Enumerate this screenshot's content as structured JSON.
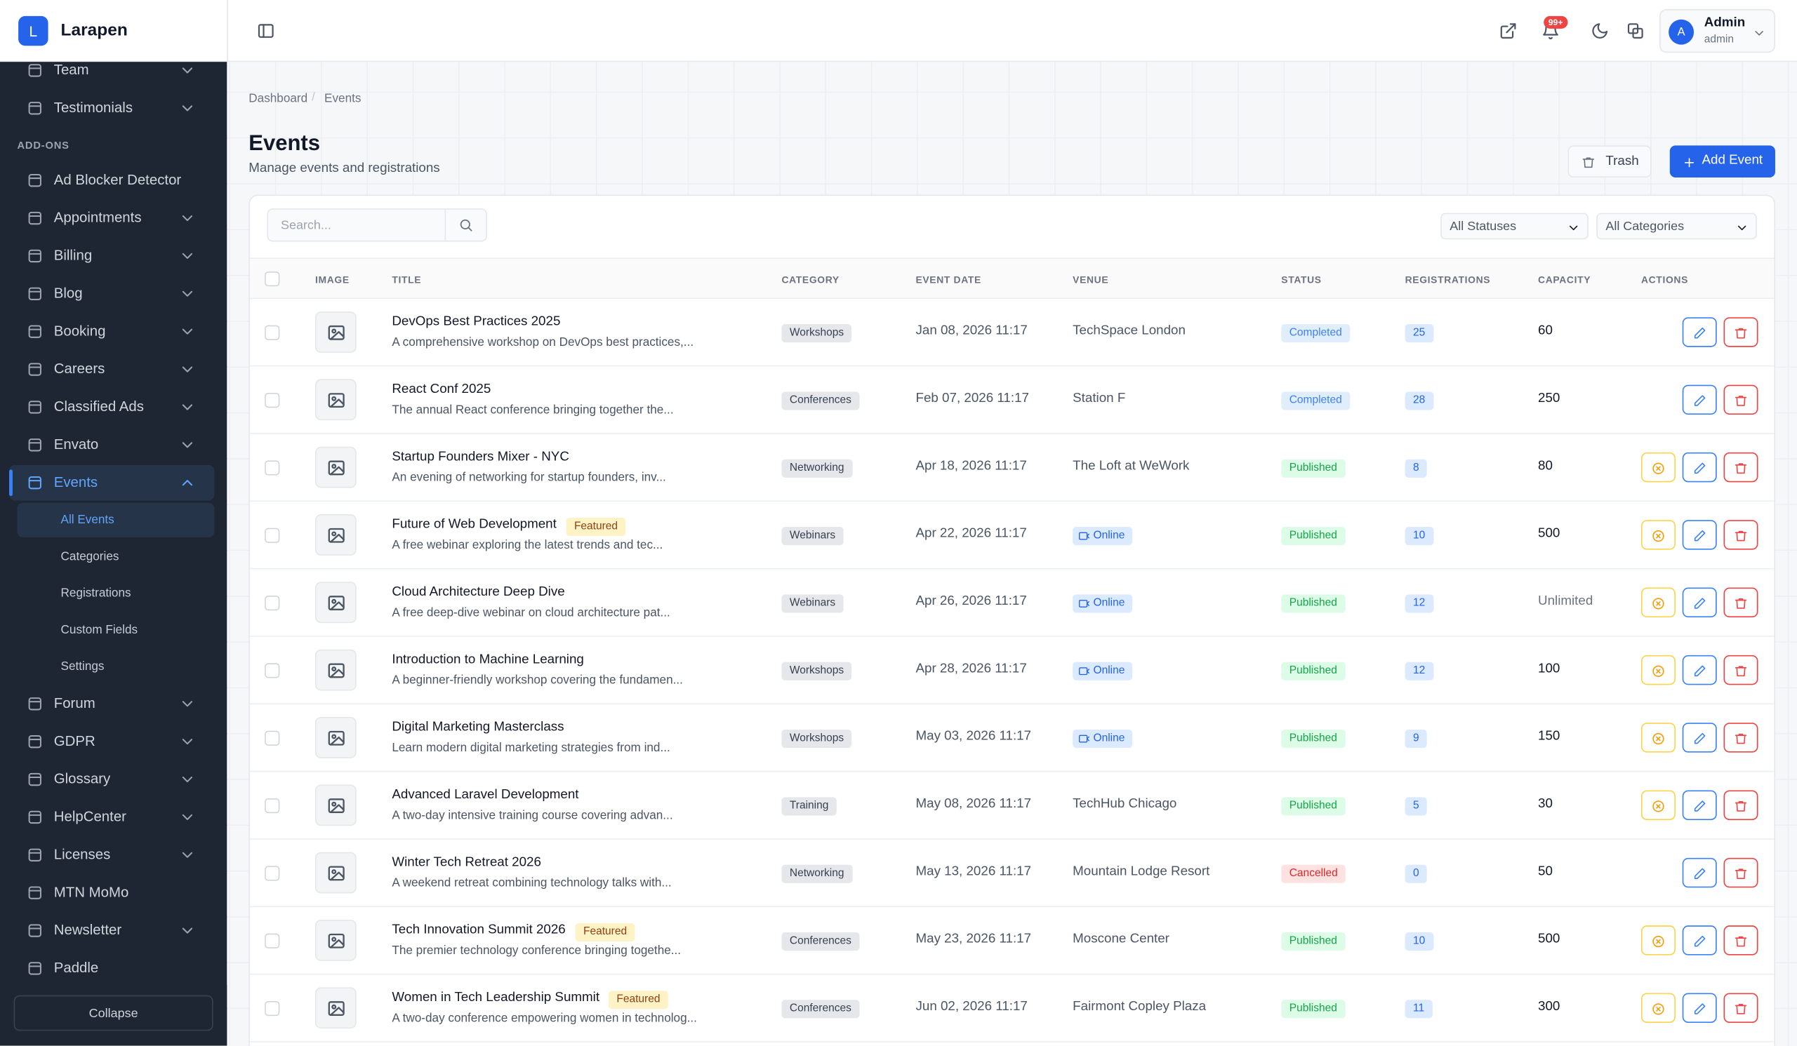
{
  "brand": {
    "initial": "L",
    "name": "Larapen"
  },
  "sidebar": {
    "top_items": [
      {
        "label": "Team",
        "expandable": true
      },
      {
        "label": "Testimonials",
        "expandable": true
      }
    ],
    "section": "ADD-ONS",
    "addons": [
      {
        "label": "Ad Blocker Detector",
        "expandable": false
      },
      {
        "label": "Appointments",
        "expandable": true
      },
      {
        "label": "Billing",
        "expandable": true
      },
      {
        "label": "Blog",
        "expandable": true
      },
      {
        "label": "Booking",
        "expandable": true
      },
      {
        "label": "Careers",
        "expandable": true
      },
      {
        "label": "Classified Ads",
        "expandable": true
      },
      {
        "label": "Envato",
        "expandable": true
      },
      {
        "label": "Events",
        "expandable": true,
        "active": true,
        "children": [
          {
            "label": "All Events",
            "active": true
          },
          {
            "label": "Categories"
          },
          {
            "label": "Registrations"
          },
          {
            "label": "Custom Fields"
          },
          {
            "label": "Settings"
          }
        ]
      },
      {
        "label": "Forum",
        "expandable": true
      },
      {
        "label": "GDPR",
        "expandable": true
      },
      {
        "label": "Glossary",
        "expandable": true
      },
      {
        "label": "HelpCenter",
        "expandable": true
      },
      {
        "label": "Licenses",
        "expandable": true
      },
      {
        "label": "MTN MoMo",
        "expandable": false
      },
      {
        "label": "Newsletter",
        "expandable": true
      },
      {
        "label": "Paddle",
        "expandable": false
      }
    ],
    "collapse": "Collapse"
  },
  "topbar": {
    "notifications": "99+",
    "user": {
      "initial": "A",
      "name": "Admin",
      "role": "admin"
    }
  },
  "breadcrumb": [
    "Dashboard",
    "Events"
  ],
  "page": {
    "title": "Events",
    "subtitle": "Manage events and registrations",
    "trash": "Trash",
    "add": "Add Event"
  },
  "filters": {
    "search": "Search...",
    "status": "All Statuses",
    "category": "All Categories"
  },
  "table": {
    "columns": [
      "IMAGE",
      "TITLE",
      "CATEGORY",
      "EVENT DATE",
      "VENUE",
      "STATUS",
      "REGISTRATIONS",
      "CAPACITY",
      "ACTIONS"
    ],
    "rows": [
      {
        "title": "DevOps Best Practices 2025",
        "description": "A comprehensive workshop on DevOps best practices,...",
        "category": "Workshops",
        "date": "Jan 08, 2026 11:17",
        "venue": "TechSpace London",
        "status": "Completed",
        "registrations": 25,
        "capacity": 60,
        "can_cancel": false
      },
      {
        "title": "React Conf 2025",
        "description": "The annual React conference bringing together the...",
        "category": "Conferences",
        "date": "Feb 07, 2026 11:17",
        "venue": "Station F",
        "status": "Completed",
        "registrations": 28,
        "capacity": 250,
        "can_cancel": false
      },
      {
        "title": "Startup Founders Mixer - NYC",
        "description": "An evening of networking for startup founders, inv...",
        "category": "Networking",
        "date": "Apr 18, 2026 11:17",
        "venue": "The Loft at WeWork",
        "status": "Published",
        "registrations": 8,
        "capacity": 80,
        "can_cancel": true
      },
      {
        "title": "Future of Web Development",
        "badge": "Featured",
        "description": "A free webinar exploring the latest trends and tec...",
        "category": "Webinars",
        "date": "Apr 22, 2026 11:17",
        "venue": "Online",
        "online": true,
        "status": "Published",
        "registrations": 10,
        "capacity": 500,
        "can_cancel": true
      },
      {
        "title": "Cloud Architecture Deep Dive",
        "description": "A free deep-dive webinar on cloud architecture pat...",
        "category": "Webinars",
        "date": "Apr 26, 2026 11:17",
        "venue": "Online",
        "online": true,
        "status": "Published",
        "registrations": 12,
        "capacity": "Unlimited",
        "can_cancel": true
      },
      {
        "title": "Introduction to Machine Learning",
        "description": "A beginner-friendly workshop covering the fundamen...",
        "category": "Workshops",
        "date": "Apr 28, 2026 11:17",
        "venue": "Online",
        "online": true,
        "status": "Published",
        "registrations": 12,
        "capacity": 100,
        "can_cancel": true
      },
      {
        "title": "Digital Marketing Masterclass",
        "description": "Learn modern digital marketing strategies from ind...",
        "category": "Workshops",
        "date": "May 03, 2026 11:17",
        "venue": "Online",
        "online": true,
        "status": "Published",
        "registrations": 9,
        "capacity": 150,
        "can_cancel": true
      },
      {
        "title": "Advanced Laravel Development",
        "description": "A two-day intensive training course covering advan...",
        "category": "Training",
        "date": "May 08, 2026 11:17",
        "venue": "TechHub Chicago",
        "status": "Published",
        "registrations": 5,
        "capacity": 30,
        "can_cancel": true
      },
      {
        "title": "Winter Tech Retreat 2026",
        "description": "A weekend retreat combining technology talks with...",
        "category": "Networking",
        "date": "May 13, 2026 11:17",
        "venue": "Mountain Lodge Resort",
        "status": "Cancelled",
        "registrations": 0,
        "capacity": 50,
        "can_cancel": false
      },
      {
        "title": "Tech Innovation Summit 2026",
        "badge": "Featured",
        "description": "The premier technology conference bringing togethe...",
        "category": "Conferences",
        "date": "May 23, 2026 11:17",
        "venue": "Moscone Center",
        "status": "Published",
        "registrations": 10,
        "capacity": 500,
        "can_cancel": true
      },
      {
        "title": "Women in Tech Leadership Summit",
        "badge": "Featured",
        "description": "A two-day conference empowering women in technolog...",
        "category": "Conferences",
        "date": "Jun 02, 2026 11:17",
        "venue": "Fairmont Copley Plaza",
        "status": "Published",
        "registrations": 11,
        "capacity": 300,
        "can_cancel": true
      }
    ]
  }
}
